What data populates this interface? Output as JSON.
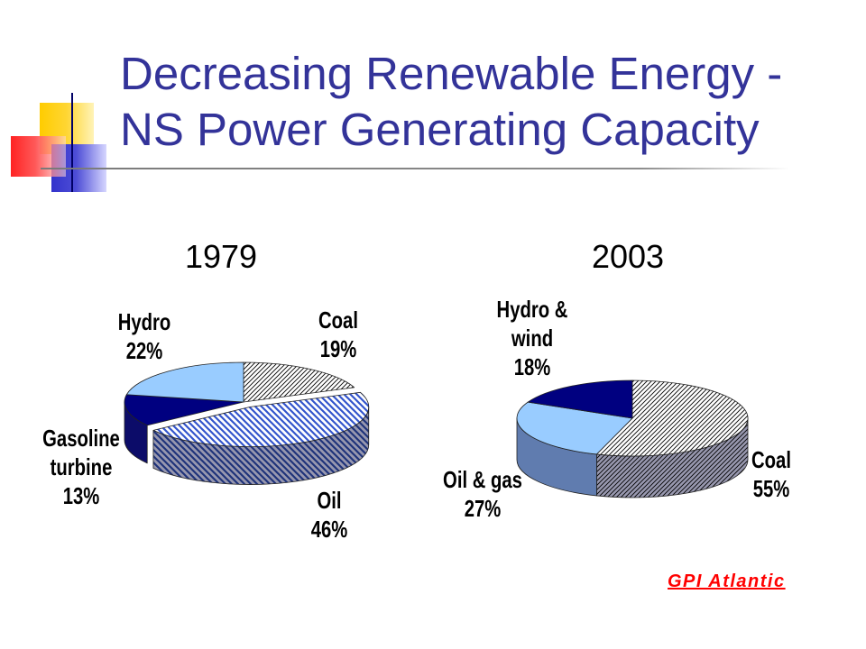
{
  "slide": {
    "title": "Decreasing Renewable Energy - NS Power Generating Capacity",
    "title_color": "#333399",
    "source_link": "GPI Atlantic",
    "source_color": "#ff0000"
  },
  "chart_data": [
    {
      "type": "pie",
      "title": "1979",
      "value_suffix": "%",
      "slices": [
        {
          "label": "Coal",
          "value": 19,
          "color": "#ffffff",
          "hatch_color": "#000000"
        },
        {
          "label": "Oil",
          "value": 46,
          "color": "#ffffff",
          "hatch_color": "#3355cc",
          "exploded": true
        },
        {
          "label": "Gasoline turbine",
          "value": 13,
          "color": "#000080"
        },
        {
          "label": "Hydro",
          "value": 22,
          "color": "#99ccff"
        }
      ]
    },
    {
      "type": "pie",
      "title": "2003",
      "value_suffix": "%",
      "slices": [
        {
          "label": "Coal",
          "value": 55,
          "color": "#ffffff",
          "hatch_color": "#000000"
        },
        {
          "label": "Oil & gas",
          "value": 27,
          "color": "#99ccff"
        },
        {
          "label": "Hydro & wind",
          "value": 18,
          "color": "#000080"
        }
      ]
    }
  ]
}
